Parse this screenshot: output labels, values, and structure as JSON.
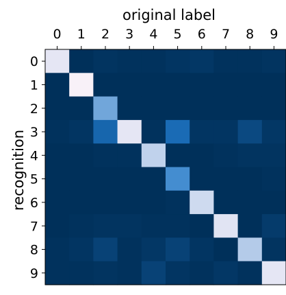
{
  "chart_data": {
    "type": "heatmap",
    "title": "",
    "xlabel": "original label",
    "ylabel": "recognition",
    "x_axis_position": "top",
    "x_ticks": [
      "0",
      "1",
      "2",
      "3",
      "4",
      "5",
      "6",
      "7",
      "8",
      "9"
    ],
    "y_ticks": [
      "0",
      "1",
      "2",
      "3",
      "4",
      "5",
      "6",
      "7",
      "8",
      "9"
    ],
    "colormap": "dark navy (low) -> blue -> white (high)",
    "color_low": "#00305a",
    "color_mid": "#1f78c8",
    "color_high": "#fff5fa",
    "value_range": [
      0,
      1
    ],
    "grid": false,
    "values": [
      [
        0.93,
        0.0,
        0.02,
        0.01,
        0.01,
        0.03,
        0.04,
        0.01,
        0.01,
        0.02
      ],
      [
        0.0,
        0.98,
        0.0,
        0.0,
        0.0,
        0.0,
        0.0,
        0.0,
        0.0,
        0.0
      ],
      [
        0.0,
        0.0,
        0.62,
        0.0,
        0.0,
        0.0,
        0.0,
        0.0,
        0.0,
        0.0
      ],
      [
        0.01,
        0.03,
        0.3,
        0.93,
        0.01,
        0.33,
        0.03,
        0.03,
        0.14,
        0.04
      ],
      [
        0.0,
        0.0,
        0.01,
        0.01,
        0.83,
        0.0,
        0.0,
        0.01,
        0.02,
        0.02
      ],
      [
        0.0,
        0.0,
        0.0,
        0.0,
        0.0,
        0.5,
        0.0,
        0.0,
        0.0,
        0.01
      ],
      [
        0.0,
        0.0,
        0.0,
        0.0,
        0.0,
        0.01,
        0.87,
        0.0,
        0.0,
        0.0
      ],
      [
        0.0,
        0.01,
        0.02,
        0.02,
        0.01,
        0.01,
        0.0,
        0.92,
        0.0,
        0.06
      ],
      [
        0.01,
        0.03,
        0.1,
        0.01,
        0.04,
        0.1,
        0.03,
        0.0,
        0.8,
        0.02
      ],
      [
        0.01,
        0.01,
        0.02,
        0.01,
        0.1,
        0.03,
        0.01,
        0.04,
        0.01,
        0.93
      ]
    ]
  }
}
